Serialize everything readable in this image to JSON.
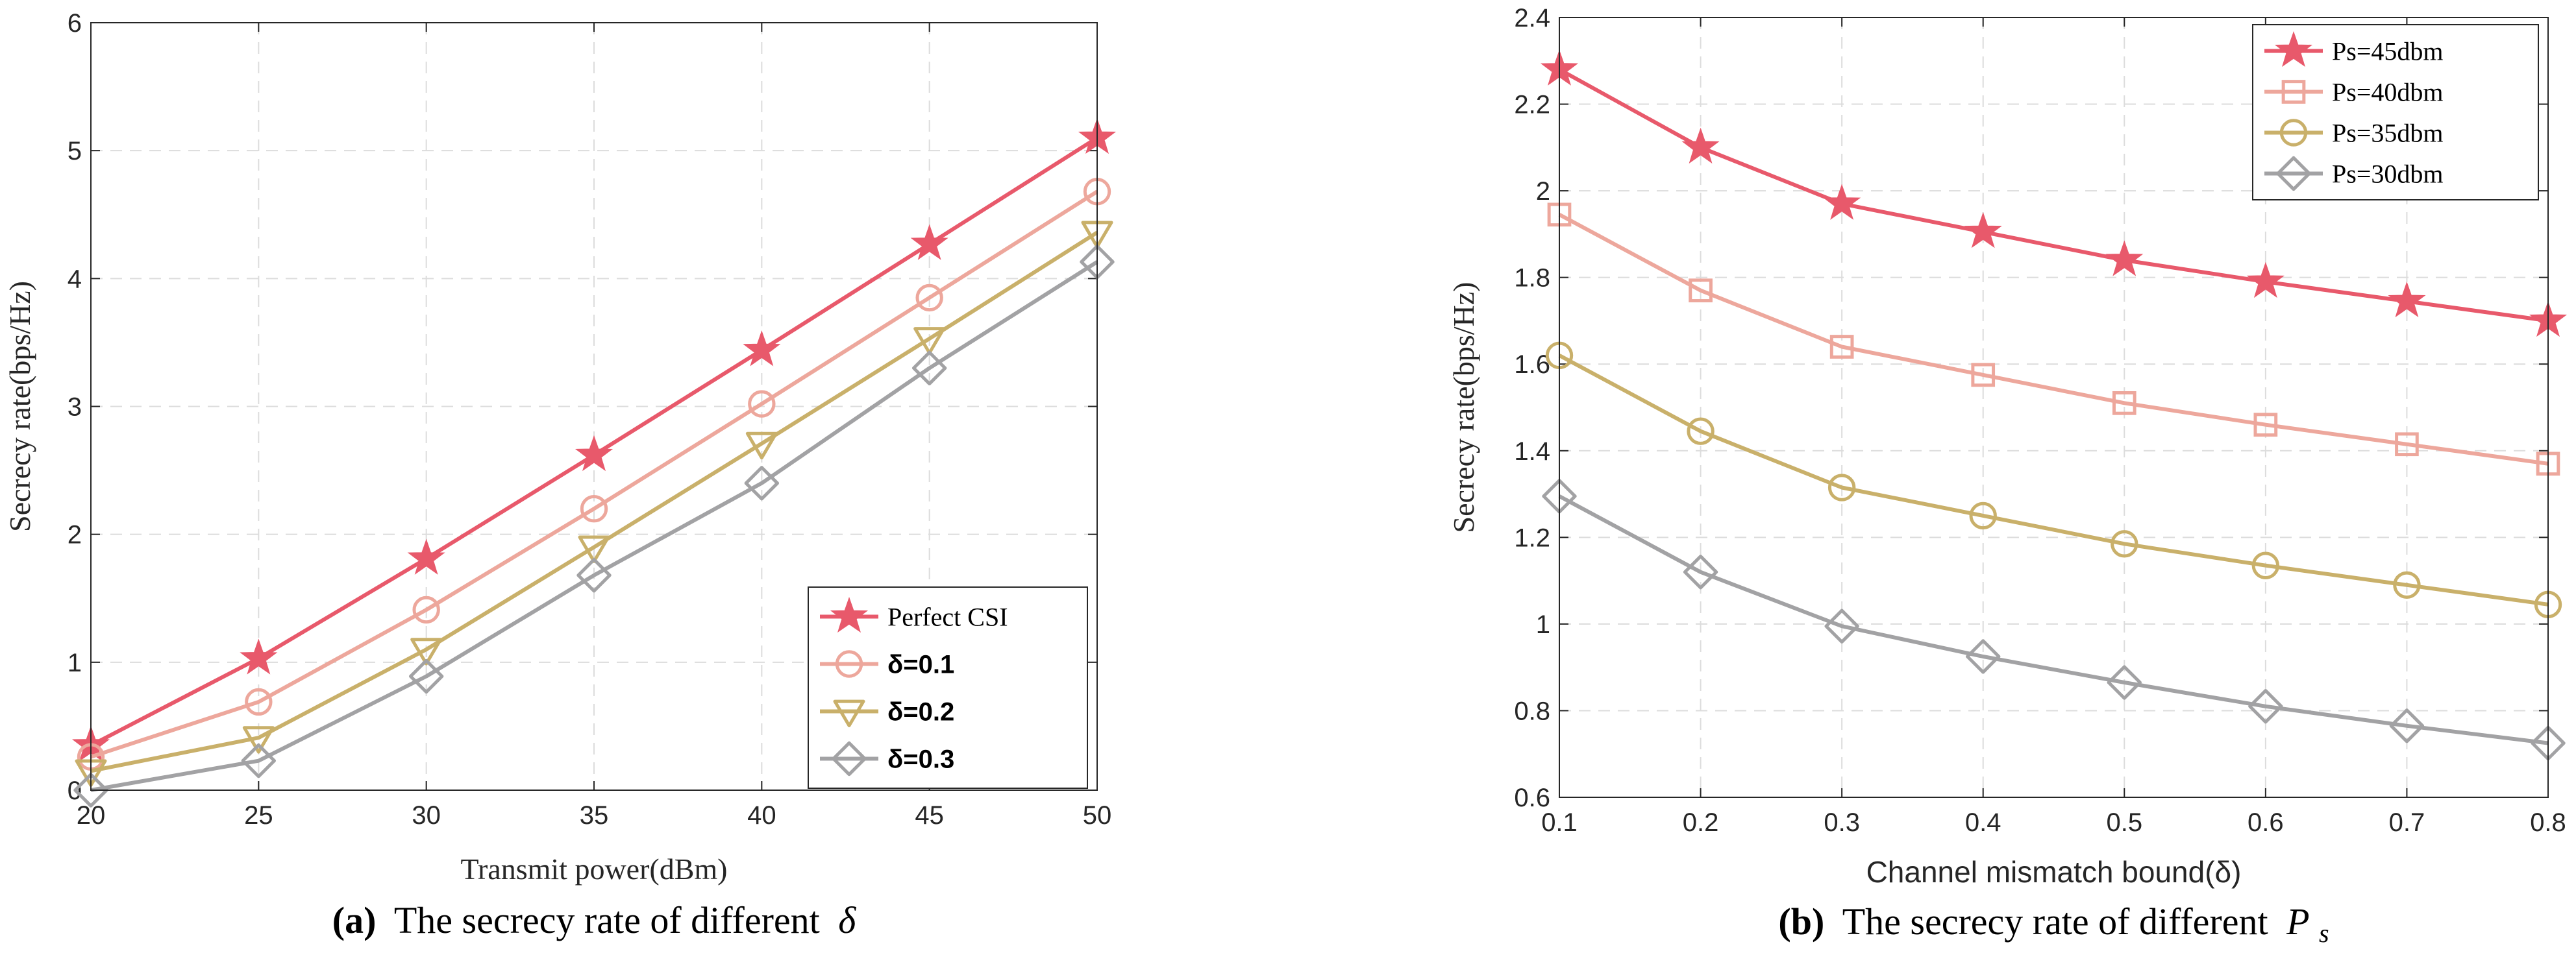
{
  "chart_data": [
    {
      "type": "line",
      "id": "a",
      "xlabel": "Transmit power(dBm)",
      "ylabel": "Secrecy rate(bps/Hz)",
      "xlim": [
        20,
        50
      ],
      "ylim": [
        0,
        6
      ],
      "xticks": [
        20,
        25,
        30,
        35,
        40,
        45,
        50
      ],
      "yticks": [
        0,
        1,
        2,
        3,
        4,
        5,
        6
      ],
      "grid": true,
      "legend_position": "bottom-right",
      "x": [
        20,
        25,
        30,
        35,
        40,
        45,
        50
      ],
      "series": [
        {
          "name": "Perfect CSI",
          "marker": "star",
          "color": "#e8596b",
          "values": [
            0.35,
            1.03,
            1.81,
            2.62,
            3.44,
            4.27,
            5.1
          ]
        },
        {
          "name": "δ=0.1",
          "marker": "circle",
          "color": "#eda79c",
          "values": [
            0.26,
            0.69,
            1.41,
            2.2,
            3.02,
            3.85,
            4.68
          ]
        },
        {
          "name": "δ=0.2",
          "marker": "triangle-down",
          "color": "#c9b06a",
          "values": [
            0.15,
            0.41,
            1.1,
            1.9,
            2.71,
            3.53,
            4.36
          ]
        },
        {
          "name": "δ=0.3",
          "marker": "diamond",
          "color": "#a2a2a4",
          "values": [
            0.0,
            0.23,
            0.89,
            1.68,
            2.4,
            3.3,
            4.13
          ]
        }
      ],
      "caption_label": "(a)",
      "caption_text": "The secrecy rate of different",
      "caption_symbol": "δ"
    },
    {
      "type": "line",
      "id": "b",
      "xlabel": "Channel mismatch bound(δ)",
      "ylabel": "Secrecy rate(bps/Hz)",
      "xlim": [
        0.1,
        0.8
      ],
      "ylim": [
        0.6,
        2.4
      ],
      "xticks": [
        0.1,
        0.2,
        0.3,
        0.4,
        0.5,
        0.6,
        0.7,
        0.8
      ],
      "yticks": [
        0.6,
        0.8,
        1,
        1.2,
        1.4,
        1.6,
        1.8,
        2,
        2.2,
        2.4
      ],
      "grid": true,
      "legend_position": "top-right",
      "x": [
        0.1,
        0.2,
        0.3,
        0.4,
        0.5,
        0.6,
        0.7,
        0.8
      ],
      "series": [
        {
          "name": "Ps=45dbm",
          "marker": "star",
          "color": "#e8596b",
          "values": [
            2.28,
            2.1,
            1.97,
            1.905,
            1.84,
            1.79,
            1.745,
            1.7
          ]
        },
        {
          "name": "Ps=40dbm",
          "marker": "square",
          "color": "#eda79c",
          "values": [
            1.945,
            1.77,
            1.64,
            1.575,
            1.51,
            1.46,
            1.415,
            1.37
          ]
        },
        {
          "name": "Ps=35dbm",
          "marker": "circle",
          "color": "#c9b06a",
          "values": [
            1.62,
            1.445,
            1.315,
            1.25,
            1.185,
            1.135,
            1.09,
            1.045
          ]
        },
        {
          "name": "Ps=30dbm",
          "marker": "diamond",
          "color": "#a2a2a4",
          "values": [
            1.295,
            1.12,
            0.995,
            0.925,
            0.865,
            0.81,
            0.765,
            0.725
          ]
        }
      ],
      "caption_label": "(b)",
      "caption_text": "The secrecy rate of different",
      "caption_symbol": "P",
      "caption_subscript": "s"
    }
  ]
}
